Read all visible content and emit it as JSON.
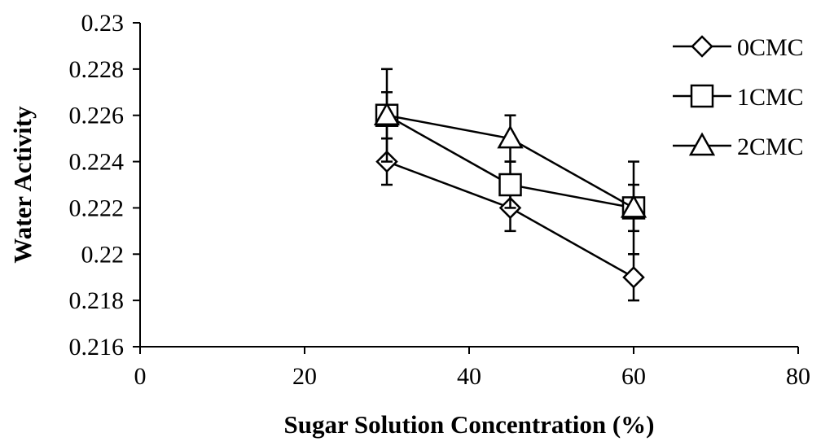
{
  "chart_data": {
    "type": "line",
    "title": "",
    "xlabel": "Sugar Solution Concentration (%)",
    "ylabel": "Water Activity",
    "xlim": [
      0,
      80
    ],
    "ylim": [
      0.216,
      0.23
    ],
    "xticks": [
      0,
      20,
      40,
      60,
      80
    ],
    "xtick_labels": [
      "0",
      "20",
      "40",
      "60",
      "80"
    ],
    "yticks": [
      0.216,
      0.218,
      0.22,
      0.222,
      0.224,
      0.226,
      0.228,
      0.23
    ],
    "ytick_labels": [
      "0.216",
      "0.218",
      "0.22",
      "0.222",
      "0.224",
      "0.226",
      "0.228",
      "0.23"
    ],
    "grid": false,
    "legend_position": "right",
    "series": [
      {
        "name": "0CMC",
        "marker": "diamond",
        "x": [
          30,
          45,
          60
        ],
        "y": [
          0.224,
          0.222,
          0.219
        ],
        "error": [
          0.001,
          0.001,
          0.001
        ]
      },
      {
        "name": "1CMC",
        "marker": "square",
        "x": [
          30,
          45,
          60
        ],
        "y": [
          0.226,
          0.223,
          0.222
        ],
        "error": [
          0.002,
          0.001,
          0.002
        ]
      },
      {
        "name": "2CMC",
        "marker": "triangle",
        "x": [
          30,
          45,
          60
        ],
        "y": [
          0.226,
          0.225,
          0.222
        ],
        "error": [
          0.001,
          0.001,
          0.001
        ]
      }
    ]
  }
}
